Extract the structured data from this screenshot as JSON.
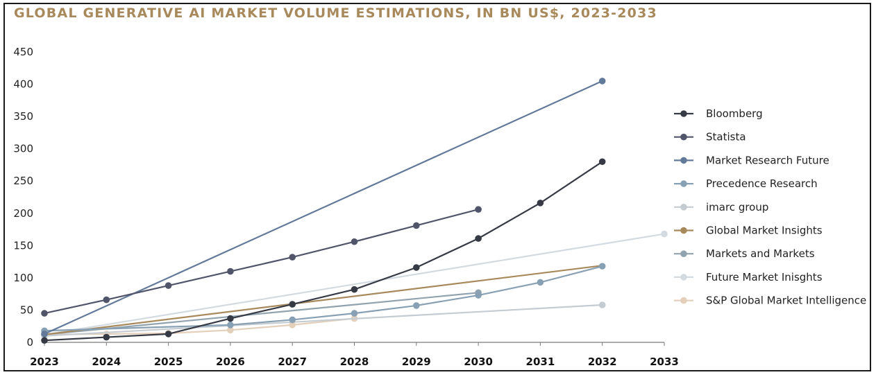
{
  "chart_data": {
    "type": "line",
    "title": "GLOBAL GENERATIVE AI MARKET VOLUME ESTIMATIONS, IN BN US$, 2023-2033",
    "xlabel": "",
    "ylabel": "",
    "x": [
      2023,
      2024,
      2025,
      2026,
      2027,
      2028,
      2029,
      2030,
      2031,
      2032,
      2033
    ],
    "ylim": [
      0,
      450
    ],
    "yticks": [
      0,
      50,
      100,
      150,
      200,
      250,
      300,
      350,
      400,
      450
    ],
    "grid": false,
    "legend": "right",
    "series": [
      {
        "name": "Bloomberg",
        "color": "#363a45",
        "markers": "all",
        "points": [
          [
            2023,
            3
          ],
          [
            2024,
            8
          ],
          [
            2025,
            13
          ],
          [
            2026,
            37
          ],
          [
            2027,
            59
          ],
          [
            2028,
            82
          ],
          [
            2029,
            116
          ],
          [
            2030,
            161
          ],
          [
            2031,
            216
          ],
          [
            2032,
            280
          ]
        ]
      },
      {
        "name": "Statista",
        "color": "#50556a",
        "markers": "all",
        "points": [
          [
            2023,
            45
          ],
          [
            2024,
            66
          ],
          [
            2025,
            88
          ],
          [
            2026,
            110
          ],
          [
            2027,
            132
          ],
          [
            2028,
            156
          ],
          [
            2029,
            181
          ],
          [
            2030,
            206
          ]
        ]
      },
      {
        "name": "Market Research Future",
        "color": "#62799a",
        "markers": "ends",
        "points": [
          [
            2023,
            13
          ],
          [
            2032,
            405
          ]
        ]
      },
      {
        "name": "Precedence Research",
        "color": "#87a0b3",
        "markers": "all",
        "points": [
          [
            2023,
            18
          ],
          [
            2026,
            27
          ],
          [
            2027,
            35
          ],
          [
            2028,
            45
          ],
          [
            2029,
            57
          ],
          [
            2030,
            73
          ],
          [
            2031,
            93
          ],
          [
            2032,
            118
          ]
        ]
      },
      {
        "name": "imarc group",
        "color": "#c4ccd2",
        "markers": "ends",
        "points": [
          [
            2023,
            10
          ],
          [
            2032,
            58
          ]
        ]
      },
      {
        "name": "Global Market Insights",
        "color": "#a8895c",
        "markers": "none",
        "points": [
          [
            2023,
            12
          ],
          [
            2032,
            119
          ]
        ]
      },
      {
        "name": "Markets and Markets",
        "color": "#91a3ae",
        "markers": "ends",
        "points": [
          [
            2023,
            12
          ],
          [
            2030,
            77
          ]
        ]
      },
      {
        "name": "Future Market Inisghts",
        "color": "#d3dbe1",
        "markers": "end",
        "points": [
          [
            2023,
            12
          ],
          [
            2033,
            168
          ]
        ]
      },
      {
        "name": "S&P Global Market Intelligence",
        "color": "#e3cfba",
        "markers": "all",
        "points": [
          [
            2023,
            12
          ],
          [
            2024,
            13
          ],
          [
            2025,
            14
          ],
          [
            2026,
            19
          ],
          [
            2027,
            27
          ],
          [
            2028,
            37
          ]
        ]
      }
    ]
  }
}
